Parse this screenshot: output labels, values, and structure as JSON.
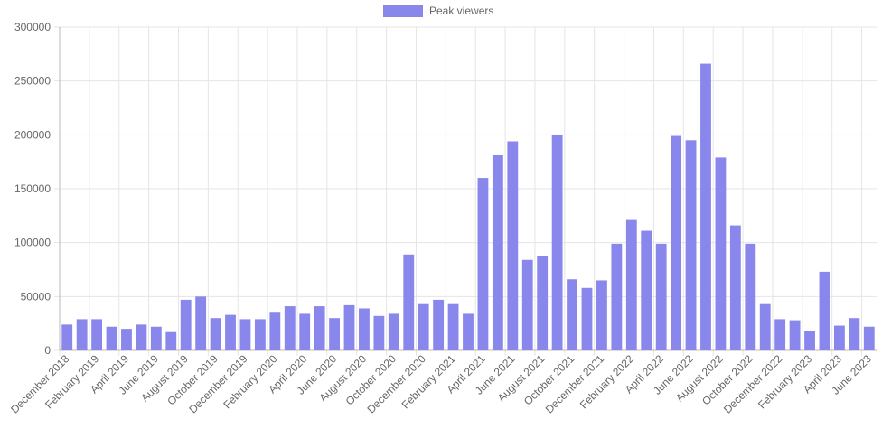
{
  "chart_data": {
    "type": "bar",
    "legend_position": "top-center",
    "grid": true,
    "ylim": [
      0,
      300000
    ],
    "y_ticks": [
      0,
      50000,
      100000,
      150000,
      200000,
      250000,
      300000
    ],
    "series": [
      {
        "name": "Peak viewers",
        "color": "#8a87ec",
        "values": [
          24000,
          29000,
          29000,
          22000,
          20000,
          24000,
          22000,
          17000,
          47000,
          50000,
          30000,
          33000,
          29000,
          29000,
          35000,
          41000,
          34000,
          41000,
          30000,
          42000,
          39000,
          32000,
          34000,
          89000,
          43000,
          47000,
          43000,
          34000,
          160000,
          181000,
          194000,
          84000,
          88000,
          200000,
          66000,
          58000,
          65000,
          99000,
          121000,
          111000,
          99000,
          199000,
          195000,
          266000,
          179000,
          116000,
          99000,
          43000,
          29000,
          28000,
          18000,
          73000,
          23000,
          30000,
          22000
        ]
      }
    ],
    "categories": [
      "December 2018",
      "January 2019",
      "February 2019",
      "March 2019",
      "April 2019",
      "May 2019",
      "June 2019",
      "July 2019",
      "August 2019",
      "September 2019",
      "October 2019",
      "November 2019",
      "December 2019",
      "January 2020",
      "February 2020",
      "March 2020",
      "April 2020",
      "May 2020",
      "June 2020",
      "July 2020",
      "August 2020",
      "September 2020",
      "October 2020",
      "November 2020",
      "December 2020",
      "January 2021",
      "February 2021",
      "March 2021",
      "April 2021",
      "May 2021",
      "June 2021",
      "July 2021",
      "August 2021",
      "September 2021",
      "October 2021",
      "November 2021",
      "December 2021",
      "January 2022",
      "February 2022",
      "March 2022",
      "April 2022",
      "May 2022",
      "June 2022",
      "July 2022",
      "August 2022",
      "September 2022",
      "October 2022",
      "November 2022",
      "December 2022",
      "January 2023",
      "February 2023",
      "March 2023",
      "April 2023",
      "May 2023",
      "June 2023"
    ],
    "visible_x_tick_labels": [
      "December 2018",
      "February 2019",
      "April 2019",
      "June 2019",
      "August 2019",
      "October 2019",
      "December 2019",
      "February 2020",
      "April 2020",
      "June 2020",
      "August 2020",
      "October 2020",
      "December 2020",
      "February 2021",
      "April 2021",
      "June 2021",
      "August 2021",
      "October 2021",
      "December 2021",
      "February 2022",
      "April 2022",
      "June 2022",
      "August 2022",
      "October 2022",
      "December 2022",
      "February 2023",
      "April 2023",
      "June 2023"
    ]
  }
}
